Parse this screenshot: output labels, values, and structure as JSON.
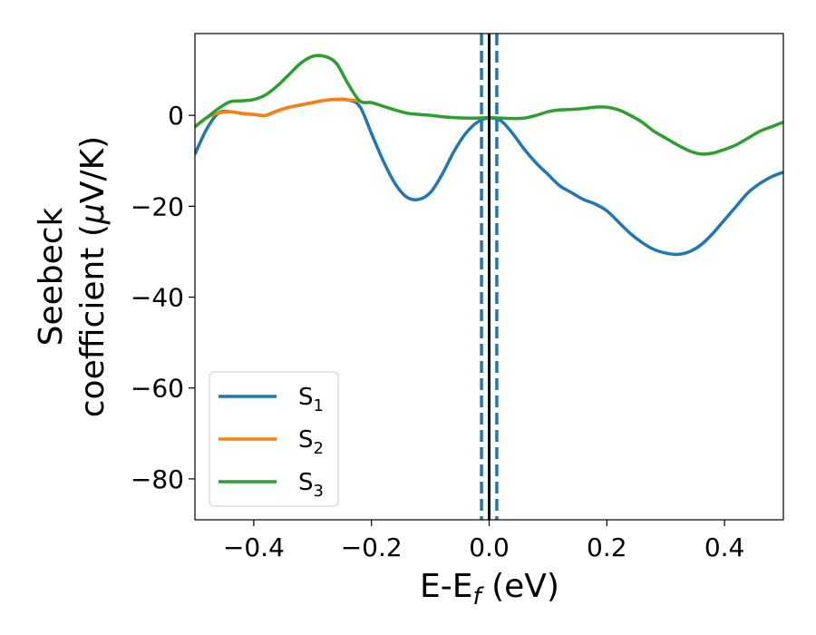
{
  "chart_data": {
    "type": "line",
    "title": "",
    "xlabel": {
      "main": "E-E",
      "sub": "f",
      "suffix": " (eV)"
    },
    "ylabel": {
      "line1": "Seebeck",
      "line2_pre": "coefficient  (",
      "line2_mu": "μ",
      "line2_post": "V/K)"
    },
    "xlim": [
      -0.5,
      0.5
    ],
    "ylim": [
      -89,
      18
    ],
    "xticks": [
      -0.4,
      -0.2,
      0.0,
      0.2,
      0.4
    ],
    "xtick_labels": [
      "−0.4",
      "−0.2",
      "0.0",
      "0.2",
      "0.4"
    ],
    "yticks": [
      0,
      -20,
      -40,
      -60,
      -80
    ],
    "ytick_labels": [
      "0",
      "−20",
      "−40",
      "−60",
      "−80"
    ],
    "grid": false,
    "legend_position": "lower-left",
    "vlines": [
      {
        "x": 0.0,
        "style": "solid",
        "color": "#000000"
      },
      {
        "x": -0.013,
        "style": "dashed",
        "color": "#1f77b4"
      },
      {
        "x": 0.013,
        "style": "dashed",
        "color": "#1f77b4"
      }
    ],
    "series": [
      {
        "name": "S",
        "sub": "1",
        "color": "#1f77b4",
        "points": [
          [
            -0.5,
            -8.5
          ],
          [
            -0.48,
            -3
          ],
          [
            -0.46,
            0.5
          ],
          [
            -0.44,
            0.8
          ],
          [
            -0.42,
            0.4
          ],
          [
            -0.4,
            0.2
          ],
          [
            -0.38,
            0
          ],
          [
            -0.36,
            1
          ],
          [
            -0.34,
            1.8
          ],
          [
            -0.32,
            2.3
          ],
          [
            -0.3,
            2.8
          ],
          [
            -0.28,
            3.3
          ],
          [
            -0.26,
            3.5
          ],
          [
            -0.24,
            3.4
          ],
          [
            -0.22,
            2
          ],
          [
            -0.2,
            -4
          ],
          [
            -0.18,
            -10
          ],
          [
            -0.16,
            -15
          ],
          [
            -0.14,
            -18
          ],
          [
            -0.12,
            -18.5
          ],
          [
            -0.1,
            -17
          ],
          [
            -0.08,
            -13
          ],
          [
            -0.06,
            -8
          ],
          [
            -0.04,
            -4
          ],
          [
            -0.02,
            -1.5
          ],
          [
            0.0,
            -0.6
          ],
          [
            0.02,
            -1.2
          ],
          [
            0.04,
            -4
          ],
          [
            0.06,
            -7.5
          ],
          [
            0.08,
            -10.5
          ],
          [
            0.1,
            -13
          ],
          [
            0.12,
            -15.5
          ],
          [
            0.14,
            -17
          ],
          [
            0.16,
            -18.5
          ],
          [
            0.18,
            -19.5
          ],
          [
            0.2,
            -21
          ],
          [
            0.22,
            -23.5
          ],
          [
            0.24,
            -26
          ],
          [
            0.26,
            -28
          ],
          [
            0.28,
            -29.5
          ],
          [
            0.3,
            -30.3
          ],
          [
            0.32,
            -30.6
          ],
          [
            0.34,
            -30
          ],
          [
            0.36,
            -28.5
          ],
          [
            0.38,
            -26
          ],
          [
            0.4,
            -23
          ],
          [
            0.42,
            -20
          ],
          [
            0.44,
            -17
          ],
          [
            0.46,
            -15
          ],
          [
            0.48,
            -13.5
          ],
          [
            0.5,
            -12.5
          ]
        ]
      },
      {
        "name": "S",
        "sub": "2",
        "color": "#ff7f0e",
        "points": [
          [
            -0.5,
            -2.5
          ],
          [
            -0.48,
            -0.5
          ],
          [
            -0.46,
            0.5
          ],
          [
            -0.44,
            0.8
          ],
          [
            -0.42,
            0.4
          ],
          [
            -0.4,
            0.2
          ],
          [
            -0.38,
            0
          ],
          [
            -0.36,
            1
          ],
          [
            -0.34,
            1.8
          ],
          [
            -0.32,
            2.3
          ],
          [
            -0.3,
            2.8
          ],
          [
            -0.28,
            3.3
          ],
          [
            -0.26,
            3.5
          ],
          [
            -0.24,
            3.4
          ],
          [
            -0.22,
            3.2
          ]
        ]
      },
      {
        "name": "S",
        "sub": "3",
        "color": "#2ca02c",
        "points": [
          [
            -0.5,
            -2.5
          ],
          [
            -0.48,
            -0.5
          ],
          [
            -0.46,
            1.5
          ],
          [
            -0.44,
            3
          ],
          [
            -0.42,
            3.2
          ],
          [
            -0.4,
            3.5
          ],
          [
            -0.38,
            4.5
          ],
          [
            -0.36,
            6.5
          ],
          [
            -0.34,
            9
          ],
          [
            -0.32,
            11.5
          ],
          [
            -0.3,
            13
          ],
          [
            -0.28,
            13
          ],
          [
            -0.26,
            11.5
          ],
          [
            -0.24,
            7
          ],
          [
            -0.22,
            3.2
          ],
          [
            -0.2,
            2.8
          ],
          [
            -0.18,
            2
          ],
          [
            -0.16,
            1.2
          ],
          [
            -0.14,
            0.5
          ],
          [
            -0.12,
            0.2
          ],
          [
            -0.1,
            0
          ],
          [
            -0.08,
            -0.3
          ],
          [
            -0.06,
            -0.5
          ],
          [
            -0.04,
            -0.6
          ],
          [
            -0.02,
            -0.6
          ],
          [
            0.0,
            -0.5
          ],
          [
            0.02,
            -0.6
          ],
          [
            0.04,
            -0.7
          ],
          [
            0.06,
            -0.6
          ],
          [
            0.08,
            0
          ],
          [
            0.1,
            0.8
          ],
          [
            0.12,
            1.2
          ],
          [
            0.14,
            1.3
          ],
          [
            0.16,
            1.5
          ],
          [
            0.18,
            1.8
          ],
          [
            0.2,
            1.8
          ],
          [
            0.22,
            1.2
          ],
          [
            0.24,
            0
          ],
          [
            0.26,
            -1.5
          ],
          [
            0.28,
            -3.5
          ],
          [
            0.3,
            -5
          ],
          [
            0.32,
            -6.5
          ],
          [
            0.34,
            -7.8
          ],
          [
            0.36,
            -8.5
          ],
          [
            0.38,
            -8.3
          ],
          [
            0.4,
            -7.5
          ],
          [
            0.42,
            -6.5
          ],
          [
            0.44,
            -5
          ],
          [
            0.46,
            -3.5
          ],
          [
            0.48,
            -2.5
          ],
          [
            0.5,
            -1.5
          ]
        ]
      }
    ]
  }
}
